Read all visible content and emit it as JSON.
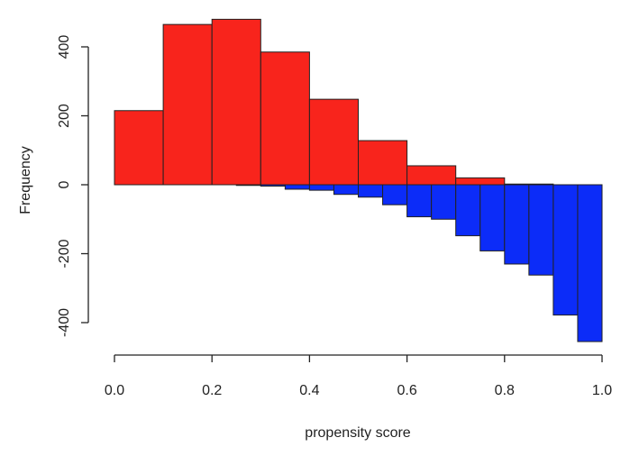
{
  "chart_data": {
    "type": "bar",
    "subtype": "mirrored-histogram",
    "title": "",
    "xlabel": "propensity score",
    "ylabel": "Frequency",
    "xlim": [
      0,
      1
    ],
    "ylim": [
      -450,
      480
    ],
    "x_ticks": [
      0.0,
      0.2,
      0.4,
      0.6,
      0.8,
      1.0
    ],
    "x_tick_labels": [
      "0.0",
      "0.2",
      "0.4",
      "0.6",
      "0.8",
      "1.0"
    ],
    "y_ticks": [
      -400,
      -200,
      0,
      200,
      400
    ],
    "y_tick_labels": [
      "-400",
      "-200",
      "0",
      "200",
      "400"
    ],
    "grid": false,
    "series": [
      {
        "color": "#f8241c",
        "bin_width": 0.1,
        "bins": [
          {
            "x0": 0.0,
            "x1": 0.1,
            "value": 215
          },
          {
            "x0": 0.1,
            "x1": 0.2,
            "value": 465
          },
          {
            "x0": 0.2,
            "x1": 0.3,
            "value": 480
          },
          {
            "x0": 0.3,
            "x1": 0.4,
            "value": 385
          },
          {
            "x0": 0.4,
            "x1": 0.5,
            "value": 248
          },
          {
            "x0": 0.5,
            "x1": 0.6,
            "value": 128
          },
          {
            "x0": 0.6,
            "x1": 0.7,
            "value": 55
          },
          {
            "x0": 0.7,
            "x1": 0.8,
            "value": 20
          },
          {
            "x0": 0.8,
            "x1": 0.9,
            "value": 2
          }
        ]
      },
      {
        "color": "#0c2cf8",
        "bin_width": 0.05,
        "bins": [
          {
            "x0": 0.25,
            "x1": 0.3,
            "value": -2
          },
          {
            "x0": 0.3,
            "x1": 0.35,
            "value": -4
          },
          {
            "x0": 0.35,
            "x1": 0.4,
            "value": -13
          },
          {
            "x0": 0.4,
            "x1": 0.45,
            "value": -16
          },
          {
            "x0": 0.45,
            "x1": 0.5,
            "value": -28
          },
          {
            "x0": 0.5,
            "x1": 0.55,
            "value": -36
          },
          {
            "x0": 0.55,
            "x1": 0.6,
            "value": -58
          },
          {
            "x0": 0.6,
            "x1": 0.65,
            "value": -93
          },
          {
            "x0": 0.65,
            "x1": 0.7,
            "value": -100
          },
          {
            "x0": 0.7,
            "x1": 0.75,
            "value": -148
          },
          {
            "x0": 0.75,
            "x1": 0.8,
            "value": -192
          },
          {
            "x0": 0.8,
            "x1": 0.85,
            "value": -230
          },
          {
            "x0": 0.85,
            "x1": 0.9,
            "value": -262
          },
          {
            "x0": 0.9,
            "x1": 0.95,
            "value": -378
          },
          {
            "x0": 0.95,
            "x1": 1.0,
            "value": -455
          }
        ]
      }
    ]
  }
}
